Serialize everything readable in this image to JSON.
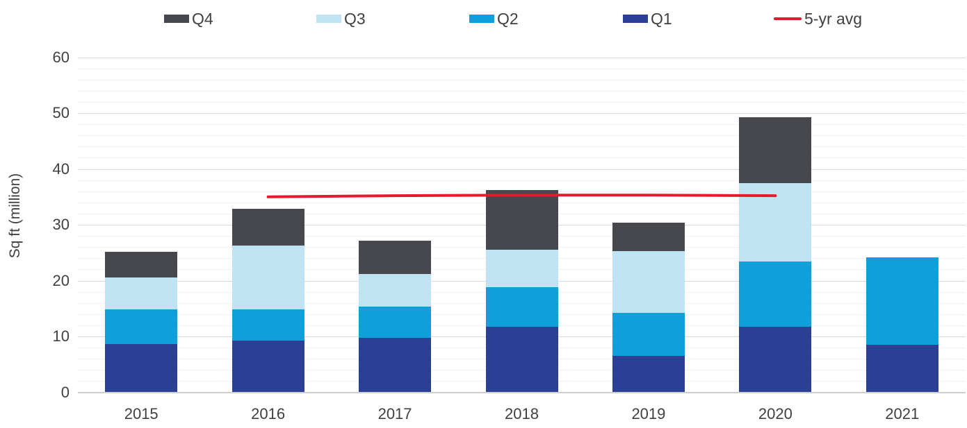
{
  "chart_data": {
    "type": "bar",
    "stacked": true,
    "title": "",
    "xlabel": "",
    "ylabel": "Sq ft (million)",
    "ylim": [
      0,
      60
    ],
    "yticks": [
      0,
      10,
      20,
      30,
      40,
      50,
      60
    ],
    "minor_grid_step": 2,
    "grid": "on",
    "legend_position": "top",
    "categories": [
      "2015",
      "2016",
      "2017",
      "2018",
      "2019",
      "2020",
      "2021"
    ],
    "series": [
      {
        "name": "Q1",
        "color": "#2b4094",
        "values": [
          8.6,
          9.2,
          9.7,
          11.7,
          6.5,
          11.8,
          8.5
        ]
      },
      {
        "name": "Q2",
        "color": "#119fdb",
        "values": [
          6.2,
          5.6,
          5.6,
          7.1,
          7.7,
          11.6,
          15.6
        ]
      },
      {
        "name": "Q3",
        "color": "#bfe3f2",
        "values": [
          5.8,
          11.5,
          5.9,
          6.7,
          11.1,
          14.1,
          0
        ]
      },
      {
        "name": "Q4",
        "color": "#47484d",
        "values": [
          4.5,
          6.6,
          6.0,
          10.7,
          5.1,
          11.7,
          0
        ]
      }
    ],
    "line_series": {
      "name": "5-yr avg",
      "color": "#e6192e",
      "x_categories": [
        "2016",
        "2017",
        "2018",
        "2019",
        "2020"
      ],
      "values": [
        35.0,
        35.2,
        35.3,
        35.3,
        35.2
      ]
    },
    "legend": [
      {
        "label": "Q4",
        "series": "Q4",
        "kind": "box"
      },
      {
        "label": "Q3",
        "series": "Q3",
        "kind": "box"
      },
      {
        "label": "Q2",
        "series": "Q2",
        "kind": "box"
      },
      {
        "label": "Q1",
        "series": "Q1",
        "kind": "box"
      },
      {
        "label": "5-yr avg",
        "series": "5-yr avg",
        "kind": "line"
      }
    ],
    "text_color": "#404040"
  }
}
